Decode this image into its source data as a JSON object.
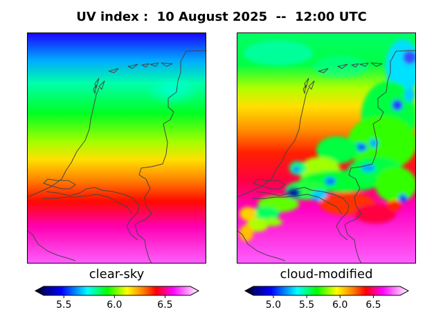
{
  "title": "UV index :  10 August 2025  --  12:00 UTC",
  "panels": {
    "left": {
      "label": "clear-sky"
    },
    "right": {
      "label": "cloud-modified"
    }
  },
  "colorbars": {
    "left": {
      "range": [
        5.3,
        6.75
      ],
      "ticks": [
        "5.5",
        "6.0",
        "6.5"
      ],
      "tick_values": [
        5.5,
        6.0,
        6.5
      ],
      "extend": "both"
    },
    "right": {
      "range": [
        4.7,
        6.9
      ],
      "ticks": [
        "5.0",
        "5.5",
        "6.0",
        "6.5"
      ],
      "tick_values": [
        5.0,
        5.5,
        6.0,
        6.5
      ],
      "extend": "both"
    }
  },
  "colormap": "gist_ncar-like: black, navy, blue, cyan, green, yellow, orange, red, magenta, white",
  "colors": {
    "stop_0": "#000000",
    "stop_1": "#000080",
    "stop_2": "#0000ff",
    "stop_3": "#00ffff",
    "stop_4": "#00ff00",
    "stop_5": "#ffff00",
    "stop_6": "#ff8000",
    "stop_7": "#ff0000",
    "stop_8": "#ff00ff",
    "stop_9": "#ffffff",
    "coastline": "#444444"
  }
}
